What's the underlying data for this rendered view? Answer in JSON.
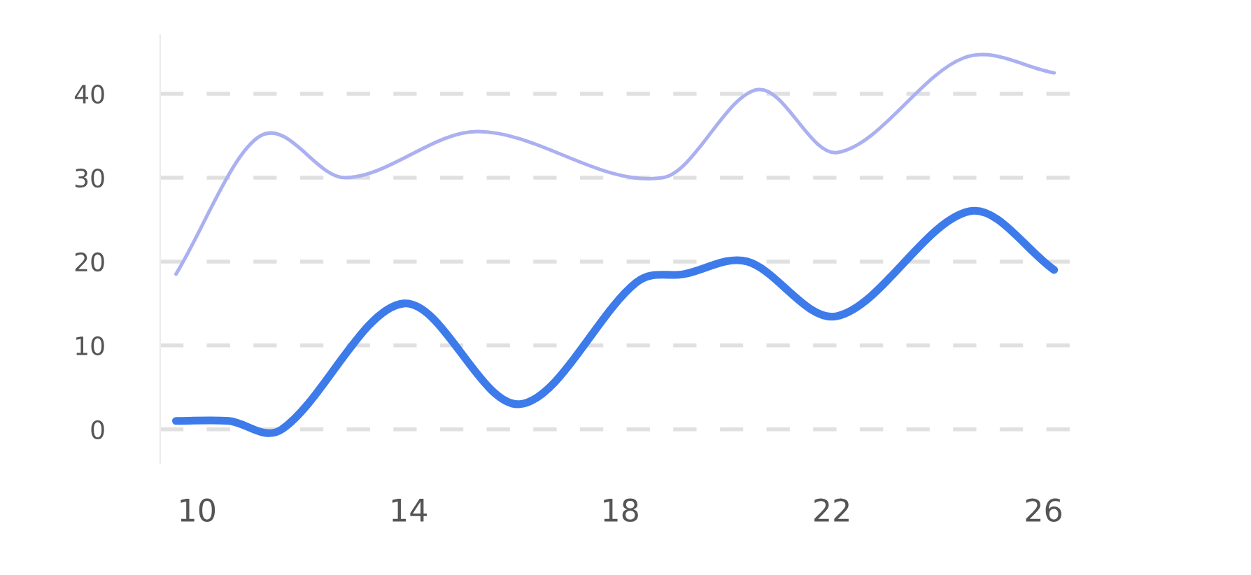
{
  "chart_data": {
    "type": "line",
    "xlim": [
      9.3,
      26.8
    ],
    "ylim": [
      -4,
      47
    ],
    "xticks": [
      10,
      14,
      18,
      22,
      26
    ],
    "yticks": [
      0,
      10,
      20,
      30,
      40
    ],
    "grid": "y",
    "legend": false,
    "marker": "none",
    "line_style": "solid",
    "series": [
      {
        "color": "#aab0f0",
        "x": [
          9.6,
          11.2,
          12.8,
          15.3,
          18.8,
          20.6,
          22.1,
          24.5,
          26.2
        ],
        "values": [
          18.5,
          35,
          30,
          35.5,
          30,
          40.5,
          33,
          44.3,
          42.5
        ]
      },
      {
        "color": "#3d7bea",
        "x": [
          9.6,
          10.6,
          11.6,
          13.9,
          16.1,
          18.3,
          19.2,
          20.4,
          22.1,
          24.6,
          26.2
        ],
        "values": [
          1,
          1,
          0,
          15,
          3,
          17.5,
          18.5,
          20,
          13.5,
          26,
          19
        ]
      }
    ]
  }
}
